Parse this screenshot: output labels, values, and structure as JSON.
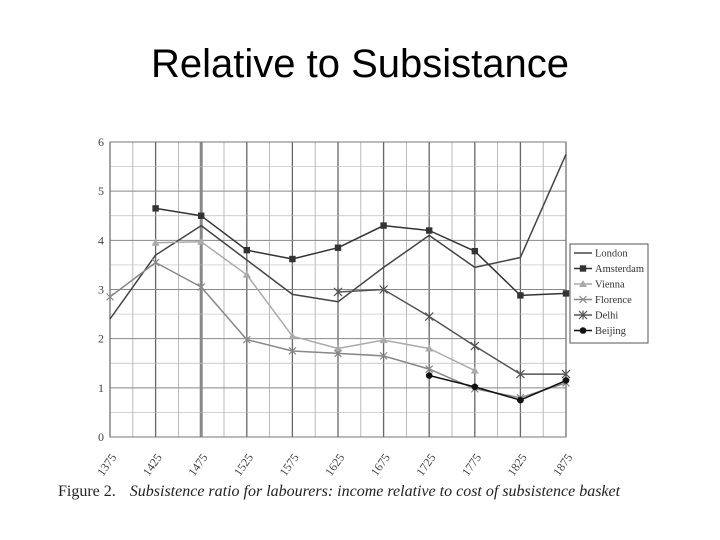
{
  "slide": {
    "title": "Relative to Subsistance"
  },
  "caption": {
    "figure_label": "Figure 2.",
    "text": "Subsistence ratio for labourers: income relative to cost of subsistence basket"
  },
  "chart_data": {
    "type": "line",
    "title": "",
    "xlabel": "",
    "ylabel": "",
    "x": [
      1375,
      1425,
      1475,
      1525,
      1575,
      1625,
      1675,
      1725,
      1775,
      1825,
      1875
    ],
    "xlim": [
      1375,
      1875
    ],
    "ylim": [
      0,
      6
    ],
    "y_ticks": [
      0,
      1,
      2,
      3,
      4,
      5,
      6
    ],
    "grid": true,
    "legend_position": "right",
    "series": [
      {
        "name": "London",
        "marker": "none",
        "color": "#444444",
        "values": [
          2.4,
          3.7,
          4.3,
          3.6,
          2.9,
          2.75,
          3.45,
          4.1,
          3.45,
          3.65,
          5.75
        ]
      },
      {
        "name": "Amsterdam",
        "marker": "square",
        "color": "#333333",
        "values": [
          null,
          4.65,
          4.5,
          3.8,
          3.62,
          3.85,
          4.3,
          4.2,
          3.78,
          2.88,
          2.92
        ]
      },
      {
        "name": "Vienna",
        "marker": "triangle",
        "color": "#aaaaaa",
        "values": [
          null,
          3.95,
          3.97,
          3.3,
          2.05,
          1.8,
          1.97,
          1.8,
          1.35,
          null,
          null
        ]
      },
      {
        "name": "Florence",
        "marker": "x",
        "color": "#888888",
        "values": [
          2.85,
          3.55,
          3.05,
          1.98,
          1.75,
          1.7,
          1.65,
          1.38,
          0.98,
          0.8,
          1.1
        ]
      },
      {
        "name": "Delhi",
        "marker": "star",
        "color": "#555555",
        "values": [
          null,
          null,
          null,
          null,
          null,
          2.95,
          3.0,
          2.45,
          1.85,
          1.28,
          1.28
        ]
      },
      {
        "name": "Beijing",
        "marker": "circle",
        "color": "#111111",
        "values": [
          null,
          null,
          null,
          null,
          null,
          null,
          null,
          1.25,
          1.02,
          0.75,
          1.15
        ]
      }
    ]
  }
}
